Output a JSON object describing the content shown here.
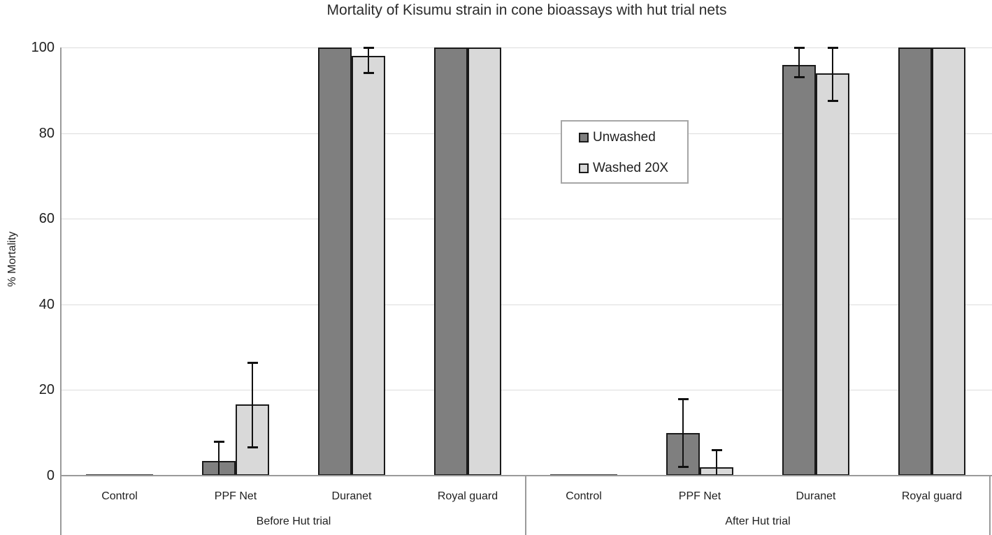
{
  "title": "Mortality of Kisumu strain in cone bioassays with hut trial nets",
  "chart_data": {
    "type": "bar",
    "title": "Mortality of Kisumu strain in cone bioassays with hut trial nets",
    "xlabel": "",
    "ylabel": "% Mortality",
    "ylim": [
      0,
      100
    ],
    "yticks": [
      0,
      20,
      40,
      60,
      80,
      100
    ],
    "grid": "horizontal",
    "legend_position": "inside-top-center",
    "groups": [
      {
        "label": "Before Hut trial",
        "categories": [
          "Control",
          "PPF Net",
          "Duranet",
          "Royal guard"
        ]
      },
      {
        "label": "After Hut trial",
        "categories": [
          "Control",
          "PPF Net",
          "Duranet",
          "Royal guard"
        ]
      }
    ],
    "series": [
      {
        "name": "Unwashed",
        "color": "#7f7f7f",
        "values": [
          [
            0,
            3.5,
            100,
            100
          ],
          [
            0,
            10,
            96,
            100
          ]
        ],
        "errors": [
          [
            null,
            [
              0,
              8
            ],
            null,
            null
          ],
          [
            null,
            [
              2,
              18
            ],
            [
              93,
              100
            ],
            null
          ]
        ]
      },
      {
        "name": "Washed 20X",
        "color": "#d9d9d9",
        "values": [
          [
            0,
            16.7,
            98,
            100
          ],
          [
            0,
            2,
            94,
            100
          ]
        ],
        "errors": [
          [
            null,
            [
              6.5,
              26.5
            ],
            [
              94,
              100
            ],
            null
          ],
          [
            null,
            [
              0,
              6
            ],
            [
              87.5,
              100
            ],
            null
          ]
        ]
      }
    ]
  },
  "colors": {
    "unwashed_fill": "#7f7f7f",
    "washed_fill": "#d9d9d9",
    "bar_border": "#1a1a1a",
    "gridline": "#dcdcdc",
    "axis_line": "#9a9a9a",
    "legend_border": "#a6a6a6",
    "text": "#1f1f1f"
  }
}
